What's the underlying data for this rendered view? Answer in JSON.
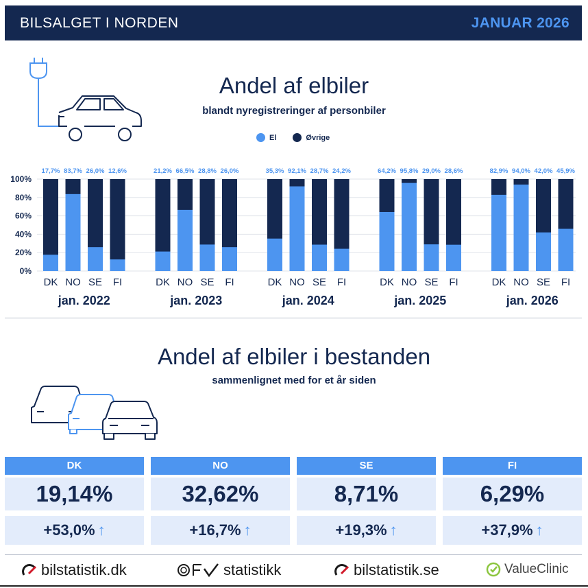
{
  "header": {
    "left": "BILSALGET I NORDEN",
    "right": "JANUAR 2026"
  },
  "section1": {
    "title": "Andel af elbiler",
    "subtitle": "blandt nyregistreringer af personbiler"
  },
  "legend": [
    {
      "label": "El",
      "color": "#4d95f0"
    },
    {
      "label": "Øvrige",
      "color": "#142850"
    }
  ],
  "chart_data": {
    "type": "bar",
    "stacked": true,
    "ylim": [
      0,
      100
    ],
    "yticks": [
      "0%",
      "20%",
      "40%",
      "60%",
      "80%",
      "100%"
    ],
    "grid": true,
    "groups": [
      {
        "label": "jan. 2022",
        "categories": [
          "DK",
          "NO",
          "SE",
          "FI"
        ],
        "values": [
          17.7,
          83.7,
          26.0,
          12.6
        ],
        "labels": [
          "17,7%",
          "83,7%",
          "26,0%",
          "12,6%"
        ]
      },
      {
        "label": "jan. 2023",
        "categories": [
          "DK",
          "NO",
          "SE",
          "FI"
        ],
        "values": [
          21.2,
          66.5,
          28.8,
          26.0
        ],
        "labels": [
          "21,2%",
          "66,5%",
          "28,8%",
          "26,0%"
        ]
      },
      {
        "label": "jan. 2024",
        "categories": [
          "DK",
          "NO",
          "SE",
          "FI"
        ],
        "values": [
          35.3,
          92.1,
          28.7,
          24.2
        ],
        "labels": [
          "35,3%",
          "92,1%",
          "28,7%",
          "24,2%"
        ]
      },
      {
        "label": "jan. 2025",
        "categories": [
          "DK",
          "NO",
          "SE",
          "FI"
        ],
        "values": [
          64.2,
          95.8,
          29.0,
          28.6
        ],
        "labels": [
          "64,2%",
          "95,8%",
          "29,0%",
          "28,6%"
        ]
      },
      {
        "label": "jan. 2026",
        "categories": [
          "DK",
          "NO",
          "SE",
          "FI"
        ],
        "values": [
          82.9,
          94.0,
          42.0,
          45.9
        ],
        "labels": [
          "82,9%",
          "94,0%",
          "42,0%",
          "45,9%"
        ]
      }
    ],
    "colors": {
      "el": "#4d95f0",
      "other": "#142850",
      "label": "#4d95f0"
    }
  },
  "section2": {
    "title": "Andel af elbiler i bestanden",
    "subtitle": "sammenlignet med for et år siden"
  },
  "stock": [
    {
      "country": "DK",
      "share": "19,14%",
      "change": "+53,0%",
      "arrow": "↑"
    },
    {
      "country": "NO",
      "share": "32,62%",
      "change": "+16,7%",
      "arrow": "↑"
    },
    {
      "country": "SE",
      "share": "8,71%",
      "change": "+19,3%",
      "arrow": "↑"
    },
    {
      "country": "FI",
      "share": "6,29%",
      "change": "+37,9%",
      "arrow": "↑"
    }
  ],
  "logos": {
    "dk": "bilstatistik.dk",
    "no": "statistikk",
    "se": "bilstatistik.se",
    "fi": "ValueClinic"
  }
}
